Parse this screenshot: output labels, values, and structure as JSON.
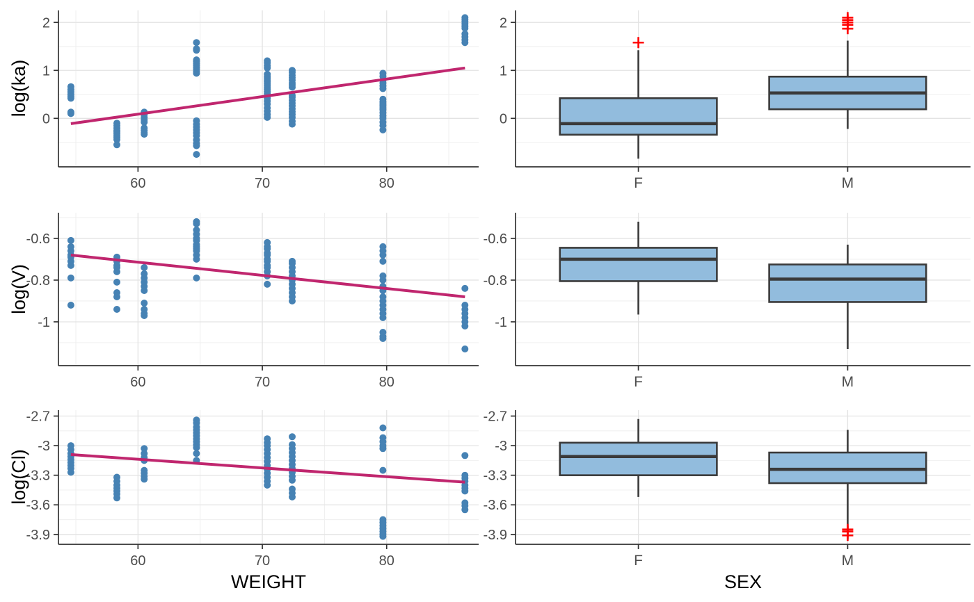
{
  "figure_title": "",
  "colors": {
    "background": "#ffffff",
    "point_blue": "#4682B4",
    "trend_line": "#C0266E",
    "box_fill": "#92BCDD",
    "box_stroke": "#3A3A3A",
    "outlier_red": "#FF0000",
    "grid_major": "#E3E3E3",
    "grid_minor": "#F0F0F0",
    "axis_line": "#333333",
    "tick_label": "#4D4D4D",
    "axis_title": "#000000"
  },
  "chart_data": [
    {
      "id": "log-ka-vs-weight",
      "type": "scatter",
      "ylabel": "log(ka)",
      "xlabel": "WEIGHT",
      "xlim": [
        53.6,
        87.4
      ],
      "ylim": [
        -1.01,
        2.25
      ],
      "x_ticks": [
        60,
        70,
        80
      ],
      "x_minor": [
        55,
        65,
        75,
        85
      ],
      "y_ticks": [
        0,
        1,
        2
      ],
      "y_minor": [
        -0.5,
        0.5,
        1.5
      ],
      "grid": true,
      "trend": {
        "x1": 54.6,
        "y1": -0.11,
        "x2": 86.3,
        "y2": 1.05
      },
      "points": [
        {
          "x": 54.6,
          "y": [
            0.66,
            0.6,
            0.55,
            0.5,
            0.46,
            0.42,
            0.13,
            0.1
          ]
        },
        {
          "x": 58.3,
          "y": [
            -0.1,
            -0.15,
            -0.2,
            -0.25,
            -0.28,
            -0.32,
            -0.36,
            -0.4,
            -0.44,
            -0.55
          ]
        },
        {
          "x": 60.5,
          "y": [
            0.13,
            0.08,
            0.02,
            -0.03,
            -0.08,
            -0.2,
            -0.25,
            -0.3,
            -0.33
          ]
        },
        {
          "x": 64.7,
          "y": [
            1.58,
            1.45,
            1.42,
            1.22,
            1.18,
            1.14,
            1.1,
            1.06,
            1.02,
            0.98,
            0.94,
            -0.05,
            -0.12,
            -0.18,
            -0.24,
            -0.3,
            -0.36,
            -0.45,
            -0.52,
            -0.57,
            -0.75
          ]
        },
        {
          "x": 70.4,
          "y": [
            1.2,
            1.16,
            1.1,
            1.05,
            0.92,
            0.88,
            0.84,
            0.8,
            0.76,
            0.72,
            0.68,
            0.64,
            0.6,
            0.56,
            0.52,
            0.48,
            0.42,
            0.36,
            0.3,
            0.22,
            0.15,
            0.08,
            0.02
          ]
        },
        {
          "x": 72.4,
          "y": [
            1.0,
            0.96,
            0.9,
            0.85,
            0.8,
            0.74,
            0.7,
            0.65,
            0.48,
            0.44,
            0.38,
            0.32,
            0.26,
            0.2,
            0.14,
            0.08,
            0.02,
            -0.06,
            -0.12
          ]
        },
        {
          "x": 79.7,
          "y": [
            0.94,
            0.88,
            0.8,
            0.74,
            0.68,
            0.62,
            0.4,
            0.34,
            0.3,
            0.26,
            0.22,
            0.18,
            0.12,
            0.06,
            0.0,
            -0.08,
            -0.15,
            -0.24
          ]
        },
        {
          "x": 86.3,
          "y": [
            2.1,
            2.06,
            2.02,
            1.97,
            1.92,
            1.88,
            1.76,
            1.7,
            1.64,
            1.58
          ]
        }
      ]
    },
    {
      "id": "log-ka-by-sex",
      "type": "box",
      "ylabel": "log(ka)",
      "xlabel": "SEX",
      "categories": [
        "F",
        "M"
      ],
      "ylim": [
        -1.01,
        2.25
      ],
      "y_ticks": [
        0,
        1,
        2
      ],
      "y_minor": [
        -0.5,
        0.5,
        1.5
      ],
      "grid": true,
      "boxes": [
        {
          "category": "F",
          "whisker_low": -0.84,
          "q1": -0.34,
          "median": -0.11,
          "q3": 0.42,
          "whisker_high": 1.42,
          "outliers": [
            1.58
          ]
        },
        {
          "category": "M",
          "whisker_low": -0.22,
          "q1": 0.19,
          "median": 0.53,
          "q3": 0.87,
          "whisker_high": 1.62,
          "outliers": [
            1.87,
            1.95,
            2.0,
            2.05,
            2.1
          ]
        }
      ]
    },
    {
      "id": "log-v-vs-weight",
      "type": "scatter",
      "ylabel": "log(V)",
      "xlabel": "WEIGHT",
      "xlim": [
        53.6,
        87.4
      ],
      "ylim": [
        -1.21,
        -0.477
      ],
      "x_ticks": [
        60,
        70,
        80
      ],
      "x_minor": [
        55,
        65,
        75,
        85
      ],
      "y_ticks": [
        -0.6,
        -0.8,
        -1.0
      ],
      "y_minor": [
        -0.5,
        -0.7,
        -0.9,
        -1.1
      ],
      "grid": true,
      "trend": {
        "x1": 54.6,
        "y1": -0.68,
        "x2": 86.3,
        "y2": -0.88
      },
      "points": [
        {
          "x": 54.6,
          "y": [
            -0.61,
            -0.64,
            -0.66,
            -0.68,
            -0.69,
            -0.71,
            -0.73,
            -0.79,
            -0.92
          ]
        },
        {
          "x": 58.3,
          "y": [
            -0.69,
            -0.71,
            -0.73,
            -0.74,
            -0.76,
            -0.81,
            -0.86,
            -0.88,
            -0.94
          ]
        },
        {
          "x": 60.5,
          "y": [
            -0.74,
            -0.77,
            -0.79,
            -0.81,
            -0.83,
            -0.85,
            -0.91,
            -0.94,
            -0.96,
            -0.97
          ]
        },
        {
          "x": 64.7,
          "y": [
            -0.52,
            -0.53,
            -0.56,
            -0.58,
            -0.6,
            -0.61,
            -0.63,
            -0.64,
            -0.65,
            -0.66,
            -0.68,
            -0.7,
            -0.79
          ]
        },
        {
          "x": 70.4,
          "y": [
            -0.62,
            -0.64,
            -0.65,
            -0.67,
            -0.68,
            -0.7,
            -0.71,
            -0.73,
            -0.74,
            -0.76,
            -0.78,
            -0.82
          ]
        },
        {
          "x": 72.4,
          "y": [
            -0.71,
            -0.72,
            -0.74,
            -0.76,
            -0.78,
            -0.8,
            -0.82,
            -0.84,
            -0.86,
            -0.88,
            -0.9
          ]
        },
        {
          "x": 79.7,
          "y": [
            -0.64,
            -0.66,
            -0.68,
            -0.71,
            -0.78,
            -0.8,
            -0.83,
            -0.85,
            -0.88,
            -0.9,
            -0.92,
            -0.94,
            -0.96,
            -0.98,
            -1.05,
            -1.07,
            -1.08
          ]
        },
        {
          "x": 86.3,
          "y": [
            -0.84,
            -0.92,
            -0.94,
            -0.96,
            -0.98,
            -1.0,
            -1.02,
            -1.13
          ]
        }
      ]
    },
    {
      "id": "log-v-by-sex",
      "type": "box",
      "ylabel": "log(V)",
      "xlabel": "SEX",
      "categories": [
        "F",
        "M"
      ],
      "ylim": [
        -1.21,
        -0.477
      ],
      "y_ticks": [
        -0.6,
        -0.8,
        -1.0
      ],
      "y_minor": [
        -0.5,
        -0.7,
        -0.9,
        -1.1
      ],
      "grid": true,
      "boxes": [
        {
          "category": "F",
          "whisker_low": -0.965,
          "q1": -0.805,
          "median": -0.7,
          "q3": -0.645,
          "whisker_high": -0.52,
          "outliers": []
        },
        {
          "category": "M",
          "whisker_low": -1.13,
          "q1": -0.905,
          "median": -0.795,
          "q3": -0.725,
          "whisker_high": -0.63,
          "outliers": []
        }
      ]
    },
    {
      "id": "log-cl-vs-weight",
      "type": "scatter",
      "ylabel": "log(Cl)",
      "xlabel": "WEIGHT",
      "xlim": [
        53.6,
        87.4
      ],
      "ylim": [
        -4.0,
        -2.64
      ],
      "x_ticks": [
        60,
        70,
        80
      ],
      "x_minor": [
        55,
        65,
        75,
        85
      ],
      "y_ticks": [
        -2.7,
        -3.0,
        -3.3,
        -3.6,
        -3.9
      ],
      "y_minor": [
        -2.85,
        -3.15,
        -3.45,
        -3.75
      ],
      "grid": true,
      "trend": {
        "x1": 54.6,
        "y1": -3.09,
        "x2": 86.3,
        "y2": -3.37
      },
      "points": [
        {
          "x": 54.6,
          "y": [
            -3.0,
            -3.04,
            -3.08,
            -3.11,
            -3.14,
            -3.17,
            -3.2,
            -3.23,
            -3.27
          ]
        },
        {
          "x": 58.3,
          "y": [
            -3.32,
            -3.36,
            -3.4,
            -3.43,
            -3.46,
            -3.49,
            -3.53
          ]
        },
        {
          "x": 60.5,
          "y": [
            -3.03,
            -3.08,
            -3.12,
            -3.15,
            -3.25,
            -3.28,
            -3.31,
            -3.34
          ]
        },
        {
          "x": 64.7,
          "y": [
            -2.74,
            -2.77,
            -2.81,
            -2.84,
            -2.87,
            -2.9,
            -2.93,
            -2.96,
            -2.99,
            -3.02,
            -3.08,
            -3.15
          ]
        },
        {
          "x": 70.4,
          "y": [
            -2.93,
            -2.97,
            -3.0,
            -3.04,
            -3.08,
            -3.12,
            -3.16,
            -3.2,
            -3.24,
            -3.28,
            -3.32,
            -3.36,
            -3.4
          ]
        },
        {
          "x": 72.4,
          "y": [
            -2.91,
            -2.99,
            -3.03,
            -3.07,
            -3.11,
            -3.15,
            -3.19,
            -3.23,
            -3.27,
            -3.31,
            -3.35,
            -3.44,
            -3.48,
            -3.52
          ]
        },
        {
          "x": 79.7,
          "y": [
            -2.82,
            -2.92,
            -2.96,
            -3.0,
            -3.03,
            -3.25,
            -3.75,
            -3.78,
            -3.81,
            -3.84,
            -3.87,
            -3.9,
            -3.92
          ]
        },
        {
          "x": 86.3,
          "y": [
            -3.1,
            -3.3,
            -3.33,
            -3.36,
            -3.4,
            -3.43,
            -3.46,
            -3.58,
            -3.61,
            -3.65
          ]
        }
      ]
    },
    {
      "id": "log-cl-by-sex",
      "type": "box",
      "ylabel": "log(Cl)",
      "xlabel": "SEX",
      "categories": [
        "F",
        "M"
      ],
      "ylim": [
        -4.0,
        -2.64
      ],
      "y_ticks": [
        -2.7,
        -3.0,
        -3.3,
        -3.6,
        -3.9
      ],
      "y_minor": [
        -2.85,
        -3.15,
        -3.45,
        -3.75
      ],
      "grid": true,
      "boxes": [
        {
          "category": "F",
          "whisker_low": -3.52,
          "q1": -3.3,
          "median": -3.11,
          "q3": -2.97,
          "whisker_high": -2.73,
          "outliers": []
        },
        {
          "category": "M",
          "whisker_low": -3.95,
          "q1": -3.38,
          "median": -3.24,
          "q3": -3.07,
          "whisker_high": -2.84,
          "outliers": [
            -3.85,
            -3.87,
            -3.91
          ]
        }
      ]
    }
  ]
}
